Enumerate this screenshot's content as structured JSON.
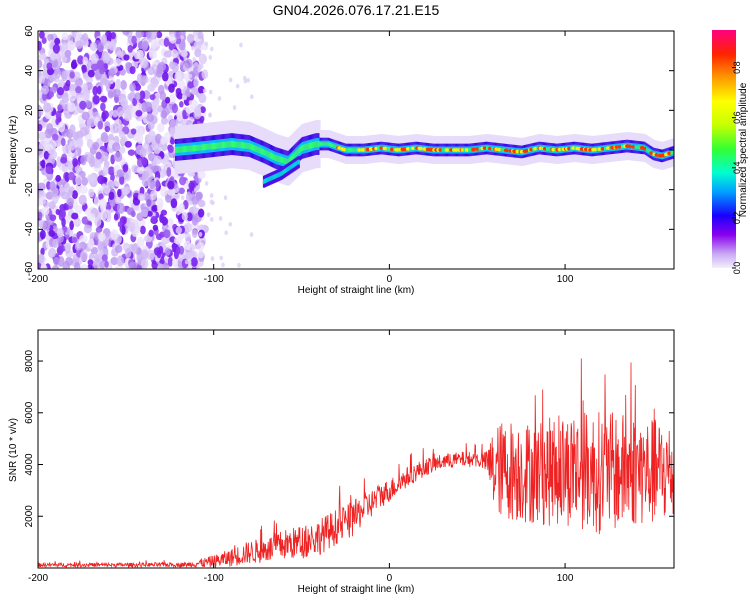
{
  "title": "GN04.2026.076.17.21.E15",
  "chart_data": [
    {
      "type": "heatmap",
      "xlabel": "Height of straight line (km)",
      "ylabel": "Frequency (Hz)",
      "xlim": [
        -200,
        162
      ],
      "ylim": [
        -60,
        60
      ],
      "xticks": [
        -200,
        -100,
        0,
        100
      ],
      "yticks": [
        -60,
        -40,
        -20,
        0,
        20,
        40,
        60
      ],
      "noise_region_x": [
        -200,
        -113
      ],
      "signal_band": {
        "x": [
          -122,
          -110,
          -100,
          -90,
          -80,
          -72,
          -65,
          -58,
          -50,
          -42,
          -35,
          -25,
          -15,
          -5,
          5,
          15,
          25,
          35,
          45,
          55,
          65,
          75,
          85,
          95,
          105,
          115,
          125,
          135,
          145,
          150,
          155,
          162
        ],
        "center_hz": [
          0,
          1,
          2,
          3,
          2,
          -1,
          -4,
          -6,
          1,
          3,
          3,
          0,
          0,
          1,
          0,
          1,
          0,
          0,
          0,
          1,
          0,
          -1,
          1,
          0,
          1,
          0,
          1,
          2,
          1,
          -2,
          -3,
          -1
        ]
      },
      "colorbar": {
        "label": "Normalized spectral amplitude",
        "range": [
          0.0,
          0.95
        ],
        "ticks": [
          "0.0",
          "0.2",
          "0.4",
          "0.6",
          "0.8"
        ]
      }
    },
    {
      "type": "line",
      "color": "#ee2222",
      "xlabel": "Height of straight line (km)",
      "ylabel": "SNR (10 * v/v)",
      "xlim": [
        -200,
        162
      ],
      "ylim": [
        0,
        9200
      ],
      "xticks": [
        -200,
        -100,
        0,
        100
      ],
      "yticks": [
        2000,
        4000,
        6000,
        8000
      ],
      "envelope": {
        "x": [
          -200,
          -150,
          -115,
          -100,
          -90,
          -80,
          -70,
          -60,
          -50,
          -40,
          -30,
          -20,
          -15,
          -10,
          -5,
          0,
          10,
          20,
          30,
          40,
          50,
          55,
          60,
          70,
          80,
          90,
          100,
          110,
          120,
          130,
          140,
          150,
          162
        ],
        "mean": [
          120,
          120,
          130,
          250,
          400,
          600,
          700,
          900,
          1000,
          1200,
          1600,
          1900,
          2300,
          2500,
          2800,
          3000,
          3500,
          3900,
          4100,
          4200,
          4200,
          4100,
          3800,
          3800,
          3700,
          3700,
          3800,
          3800,
          3700,
          3700,
          3800,
          3700,
          3700
        ],
        "spread": [
          80,
          80,
          90,
          250,
          350,
          450,
          500,
          600,
          650,
          700,
          700,
          700,
          600,
          550,
          500,
          450,
          400,
          350,
          300,
          300,
          300,
          400,
          1800,
          2000,
          2000,
          2100,
          2200,
          2300,
          2400,
          2300,
          2200,
          2100,
          2000
        ]
      }
    }
  ]
}
